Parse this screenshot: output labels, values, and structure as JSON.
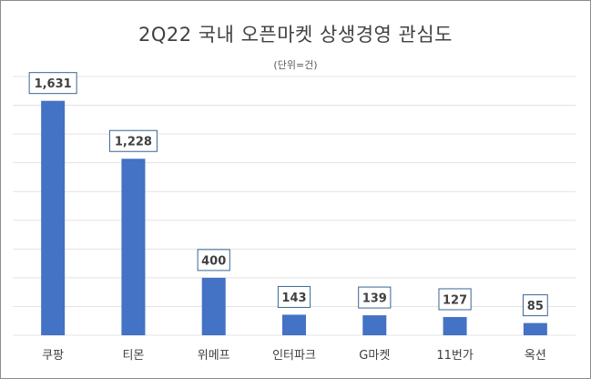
{
  "chart_data": {
    "type": "bar",
    "title": "2Q22 국내 오픈마켓 상생경영 관심도",
    "subtitle": "(단위=건)",
    "categories": [
      "쿠팡",
      "티몬",
      "위메프",
      "인터파크",
      "G마켓",
      "11번가",
      "옥션"
    ],
    "values": [
      1631,
      1228,
      400,
      143,
      139,
      127,
      85
    ],
    "data_labels": [
      "1,631",
      "1,228",
      "400",
      "143",
      "139",
      "127",
      "85"
    ],
    "ylim": [
      0,
      1800
    ],
    "grid": true,
    "legend": "none",
    "colors": {
      "bar": "#4472c4",
      "grid": "#e3e3e3",
      "label_border": "#3b6694",
      "text": "#404040"
    }
  }
}
